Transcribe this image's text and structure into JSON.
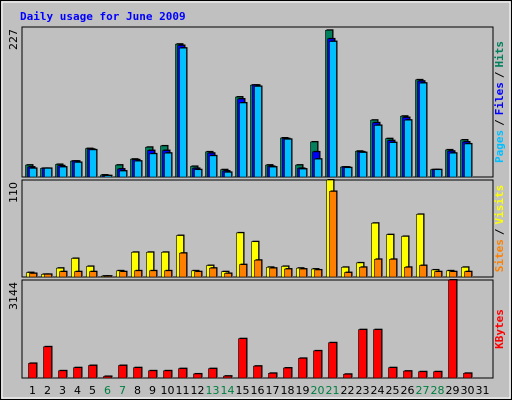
{
  "chart_data": [
    {
      "type": "bar",
      "title": "Daily usage for June 2009",
      "ylim": [
        0,
        227
      ],
      "yticks": [
        227
      ],
      "grid": true,
      "legend_separator": "/",
      "series": [
        {
          "name": "Pages",
          "color": "#00c0ff",
          "values": [
            13,
            13,
            15,
            22,
            41,
            2,
            9,
            24,
            35,
            36,
            195,
            11,
            32,
            7,
            112,
            137,
            15,
            57,
            12,
            27,
            205,
            14,
            37,
            78,
            52,
            86,
            142,
            11,
            36,
            50,
            0
          ]
        },
        {
          "name": "Files",
          "color": "#0000ff",
          "values": [
            15,
            13,
            17,
            24,
            42,
            2,
            12,
            26,
            40,
            40,
            199,
            13,
            36,
            9,
            118,
            139,
            16,
            58,
            13,
            38,
            209,
            15,
            38,
            82,
            55,
            90,
            145,
            11,
            39,
            53,
            0
          ]
        },
        {
          "name": "Hits",
          "color": "#00805c",
          "values": [
            18,
            13,
            19,
            24,
            43,
            3,
            18,
            27,
            45,
            47,
            201,
            16,
            38,
            11,
            121,
            139,
            18,
            59,
            18,
            53,
            222,
            15,
            39,
            86,
            58,
            92,
            147,
            11,
            41,
            56,
            0
          ]
        }
      ]
    },
    {
      "type": "bar",
      "ylim": [
        0,
        110
      ],
      "yticks": [
        110
      ],
      "grid": true,
      "legend_separator": "/",
      "series": [
        {
          "name": "Sites",
          "color": "#ff8000",
          "values": [
            4,
            3,
            6,
            6,
            6,
            1,
            6,
            7,
            7,
            7,
            27,
            6,
            10,
            4,
            14,
            19,
            10,
            9,
            9,
            8,
            97,
            5,
            11,
            20,
            20,
            11,
            13,
            6,
            6,
            6,
            0
          ]
        },
        {
          "name": "Visits",
          "color": "#ffff00",
          "values": [
            5,
            3,
            10,
            21,
            12,
            1,
            7,
            28,
            28,
            28,
            47,
            7,
            13,
            6,
            50,
            40,
            11,
            12,
            10,
            9,
            110,
            11,
            16,
            61,
            48,
            46,
            71,
            8,
            7,
            11,
            0
          ]
        }
      ]
    },
    {
      "type": "bar",
      "ylim": [
        0,
        3144
      ],
      "yticks": [
        3144
      ],
      "grid": true,
      "categories": [
        "1",
        "2",
        "3",
        "4",
        "5",
        "6",
        "7",
        "8",
        "9",
        "10",
        "11",
        "12",
        "13",
        "14",
        "15",
        "16",
        "17",
        "18",
        "19",
        "20",
        "21",
        "22",
        "23",
        "24",
        "25",
        "26",
        "27",
        "28",
        "29",
        "30",
        "31"
      ],
      "category_colors": [
        "#000",
        "#000",
        "#000",
        "#000",
        "#000",
        "#008040",
        "#008040",
        "#000",
        "#000",
        "#000",
        "#000",
        "#000",
        "#008040",
        "#008040",
        "#000",
        "#000",
        "#000",
        "#000",
        "#000",
        "#008040",
        "#008040",
        "#000",
        "#000",
        "#000",
        "#000",
        "#000",
        "#008040",
        "#008040",
        "#000",
        "#000",
        "#000"
      ],
      "series": [
        {
          "name": "KBytes",
          "color": "#ff0000",
          "values": [
            468,
            1000,
            230,
            330,
            400,
            50,
            400,
            330,
            230,
            230,
            300,
            130,
            300,
            60,
            1260,
            380,
            150,
            320,
            630,
            870,
            1130,
            120,
            1550,
            1550,
            330,
            220,
            200,
            200,
            3144,
            150,
            0
          ]
        }
      ]
    }
  ]
}
